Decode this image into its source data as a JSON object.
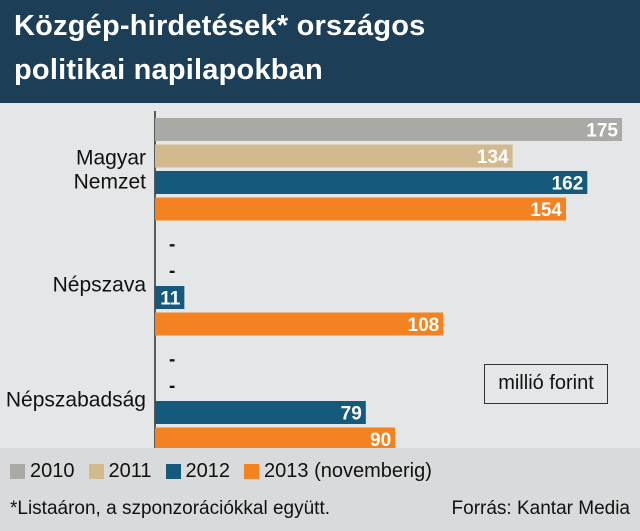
{
  "title": {
    "line1": "Közgép-hirdetések* országos",
    "line2": "politikai napilapokban"
  },
  "unit_label": "millió forint",
  "legend": [
    {
      "label": "2010",
      "color": "#a9aaa5"
    },
    {
      "label": "2011",
      "color": "#d2b98e"
    },
    {
      "label": "2012",
      "color": "#155a7c"
    },
    {
      "label": "2013 (novemberig)",
      "color": "#f58220"
    }
  ],
  "footnote": "*Listaáron, a szponzorációkkal együtt.",
  "source": "Forrás: Kantar Media",
  "chart_data": {
    "type": "bar",
    "orientation": "horizontal",
    "categories": [
      "Magyar Nemzet",
      "Népszava",
      "Népszabadság"
    ],
    "category_lines": [
      [
        "Magyar",
        "Nemzet"
      ],
      [
        "Népszava"
      ],
      [
        "Népszabadság"
      ]
    ],
    "series": [
      {
        "name": "2010",
        "color": "#a9aaa5",
        "values": [
          175,
          null,
          null
        ]
      },
      {
        "name": "2011",
        "color": "#d2b98e",
        "values": [
          134,
          null,
          null
        ]
      },
      {
        "name": "2012",
        "color": "#155a7c",
        "values": [
          162,
          11,
          79
        ]
      },
      {
        "name": "2013 (novemberig)",
        "color": "#f58220",
        "values": [
          154,
          108,
          90
        ]
      }
    ],
    "missing_label": "-",
    "xlim": [
      0,
      175
    ],
    "grid": false,
    "legend": "bottom"
  }
}
